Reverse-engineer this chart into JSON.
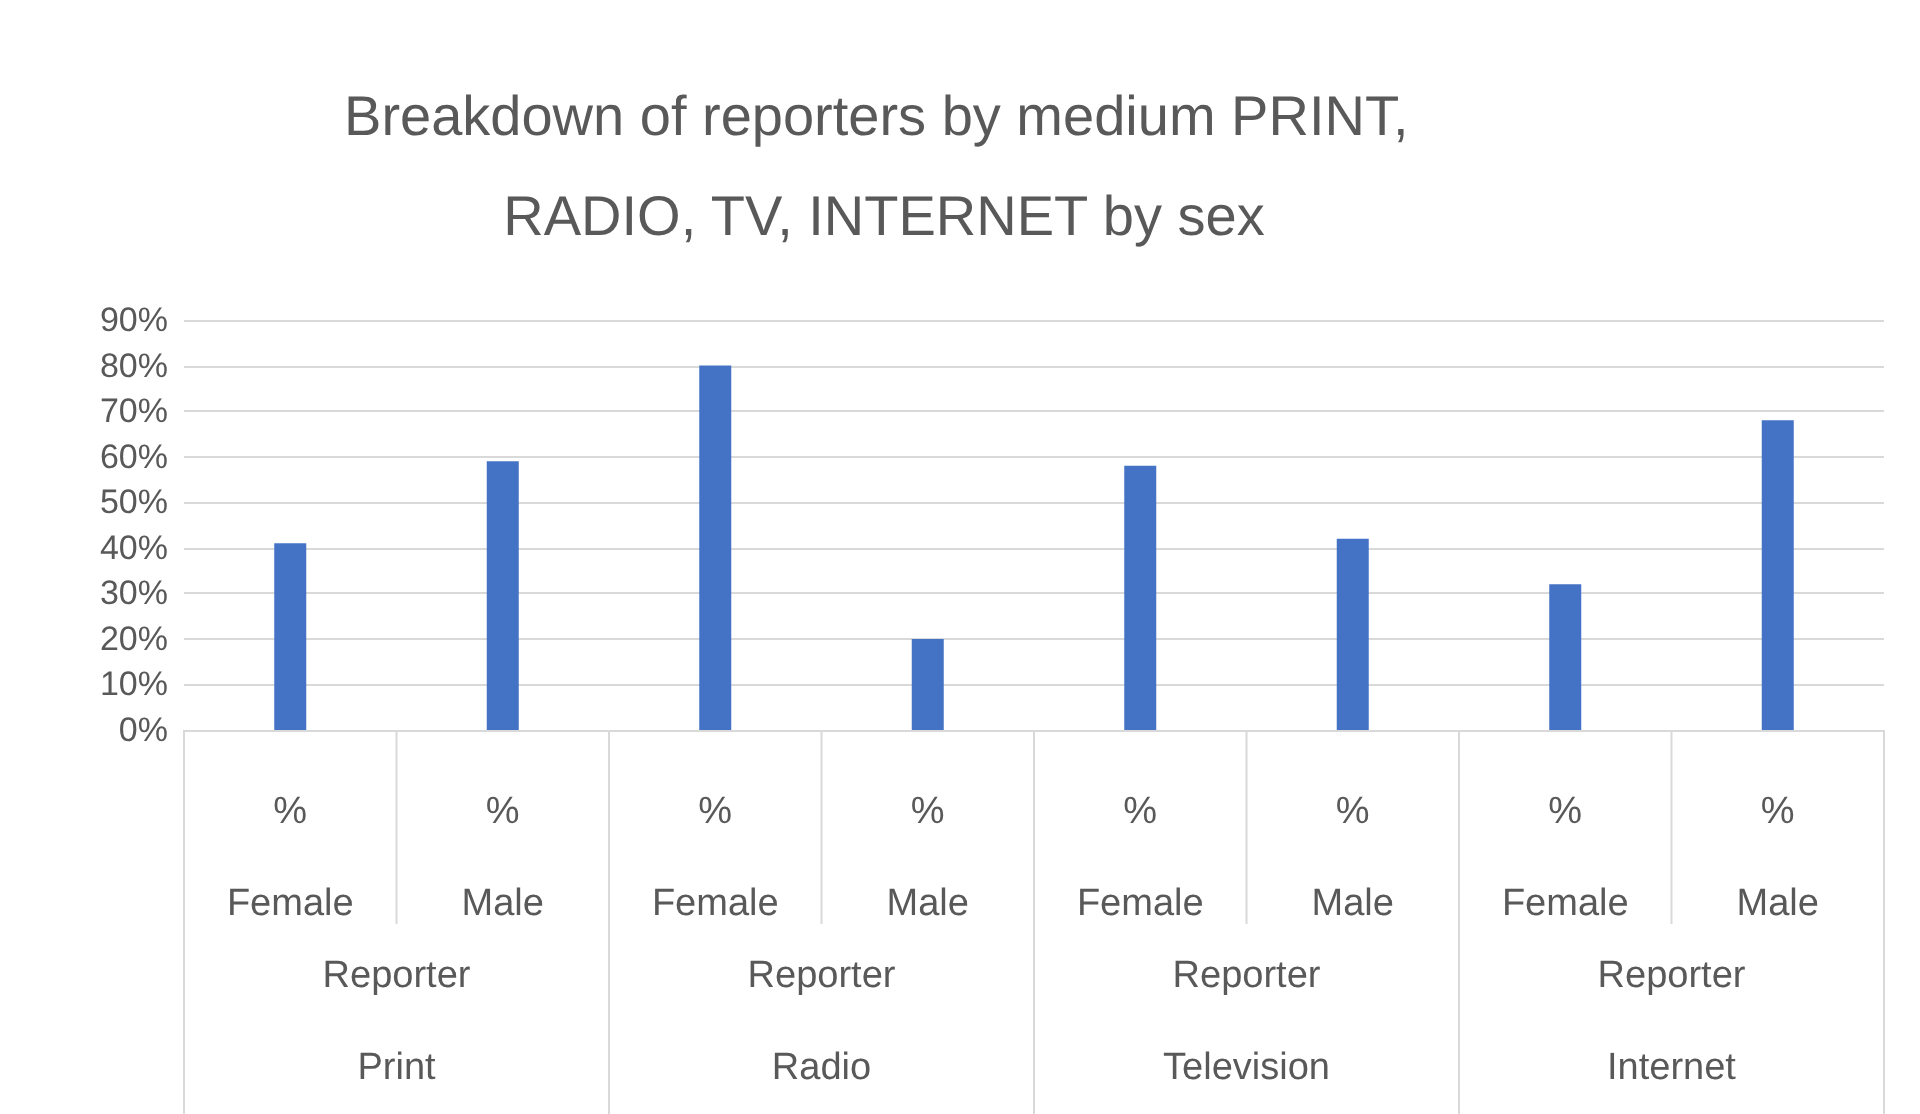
{
  "chart_data": {
    "type": "bar",
    "title": "Breakdown of reporters by medium PRINT, RADIO, TV, INTERNET by sex",
    "categories": [
      "% Female",
      "% Male",
      "% Female",
      "% Male",
      "% Female",
      "% Male",
      "% Female",
      "% Male"
    ],
    "values": [
      41,
      59,
      80,
      20,
      58,
      42,
      32,
      68
    ],
    "color": "#4472c4",
    "ylim": [
      0,
      90
    ],
    "yticks": [
      {
        "value": 0,
        "label": "0%"
      },
      {
        "value": 10,
        "label": "10%"
      },
      {
        "value": 20,
        "label": "20%"
      },
      {
        "value": 30,
        "label": "30%"
      },
      {
        "value": 40,
        "label": "40%"
      },
      {
        "value": 50,
        "label": "50%"
      },
      {
        "value": 60,
        "label": "60%"
      },
      {
        "value": 70,
        "label": "70%"
      },
      {
        "value": 80,
        "label": "80%"
      },
      {
        "value": 90,
        "label": "90%"
      }
    ],
    "annotations": [
      "Reporter",
      "Reporter",
      "Reporter",
      "Reporter",
      "Print",
      "Radio",
      "Television",
      "Internet"
    ],
    "grid": true
  }
}
